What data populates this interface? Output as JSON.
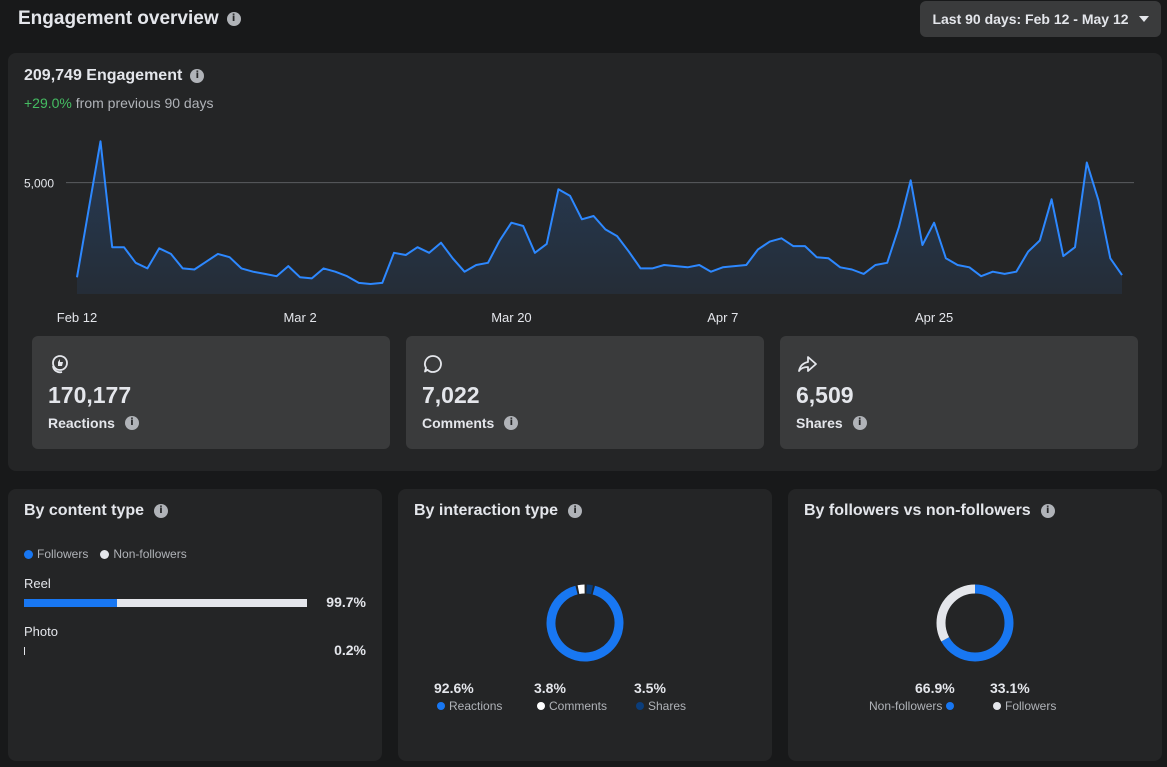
{
  "header": {
    "title": "Engagement overview",
    "date_range_label": "Last 90 days: Feb 12 - May 12"
  },
  "summary": {
    "total_label": "209,749 Engagement",
    "change_pct": "+29.0%",
    "change_text": "from previous 90 days"
  },
  "chart_data": {
    "type": "area",
    "title": "",
    "xlabel": "",
    "ylabel": "",
    "x_ticks": [
      "Feb 12",
      "Mar 2",
      "Mar 20",
      "Apr 7",
      "Apr 25"
    ],
    "y_ticks": [
      {
        "value": 5000,
        "label": "5,000"
      }
    ],
    "ylim": [
      0,
      7000
    ],
    "grid": "single reference line at 5,000",
    "series": [
      {
        "color": "#2d88ff",
        "values": [
          750,
          3800,
          6850,
          2100,
          2100,
          1400,
          1150,
          2050,
          1800,
          1150,
          1100,
          1450,
          1800,
          1650,
          1150,
          1000,
          900,
          800,
          1250,
          750,
          700,
          1150,
          1000,
          800,
          500,
          450,
          500,
          1850,
          1750,
          2100,
          1850,
          2300,
          1600,
          1000,
          1300,
          1400,
          2400,
          3200,
          3050,
          1850,
          2250,
          4700,
          4400,
          3350,
          3500,
          2900,
          2600,
          1900,
          1150,
          1150,
          1300,
          1250,
          1200,
          1300,
          1000,
          1200,
          1250,
          1300,
          2000,
          2350,
          2500,
          2150,
          2150,
          1650,
          1600,
          1200,
          1100,
          900,
          1300,
          1400,
          3000,
          5100,
          2200,
          3200,
          1600,
          1300,
          1200,
          800,
          1000,
          900,
          1000,
          1900,
          2400,
          4250,
          1700,
          2100,
          5900,
          4200,
          1600,
          850
        ]
      }
    ]
  },
  "stats": [
    {
      "icon": "reactions-icon",
      "value": "170,177",
      "label": "Reactions"
    },
    {
      "icon": "comments-icon",
      "value": "7,022",
      "label": "Comments"
    },
    {
      "icon": "shares-icon",
      "value": "6,509",
      "label": "Shares"
    }
  ],
  "by_content_type": {
    "title": "By content type",
    "legend": [
      {
        "label": "Followers",
        "color": "#1877f2"
      },
      {
        "label": "Non-followers",
        "color": "#e4e6eb"
      }
    ],
    "rows": [
      {
        "label": "Reel",
        "pct_label": "99.7%",
        "total_fraction": 0.997,
        "followers_fraction": 0.33
      },
      {
        "label": "Photo",
        "pct_label": "0.2%",
        "total_fraction": 0.002,
        "followers_fraction": 0.33
      }
    ]
  },
  "by_interaction_type": {
    "title": "By interaction type",
    "segments": [
      {
        "label": "Reactions",
        "pct_label": "92.6%",
        "fraction": 0.926,
        "color": "#1877f2"
      },
      {
        "label": "Comments",
        "pct_label": "3.8%",
        "fraction": 0.038,
        "color": "#ffffff"
      },
      {
        "label": "Shares",
        "pct_label": "3.5%",
        "fraction": 0.035,
        "color": "#0b3d7a"
      }
    ]
  },
  "by_followers": {
    "title": "By followers vs non-followers",
    "segments": [
      {
        "label": "Non-followers",
        "pct_label": "66.9%",
        "fraction": 0.669,
        "color": "#1877f2"
      },
      {
        "label": "Followers",
        "pct_label": "33.1%",
        "fraction": 0.331,
        "color": "#e4e6eb"
      }
    ]
  }
}
